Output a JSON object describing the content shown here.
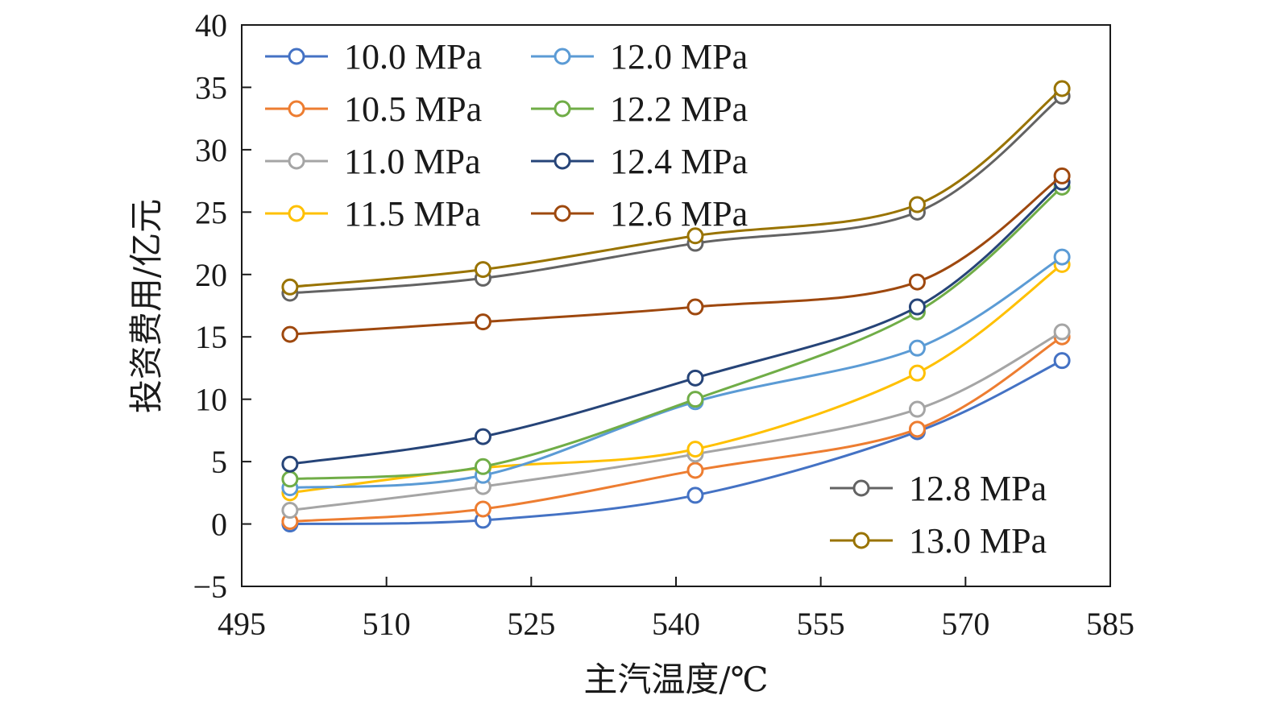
{
  "chart_data": {
    "type": "line",
    "title": "",
    "xlabel": "主汽温度/℃",
    "ylabel": "投资费用/亿元",
    "xlim": [
      495,
      585
    ],
    "ylim": [
      -5,
      40
    ],
    "xticks": [
      495,
      510,
      525,
      540,
      555,
      570,
      585
    ],
    "yticks": [
      -5,
      0,
      5,
      10,
      15,
      20,
      25,
      30,
      35,
      40
    ],
    "xtick_labels": [
      "495",
      "510",
      "525",
      "540",
      "555",
      "570",
      "585"
    ],
    "ytick_labels": [
      "−5",
      "0",
      "5",
      "10",
      "15",
      "20",
      "25",
      "30",
      "35",
      "40"
    ],
    "grid": false,
    "x": [
      500,
      520,
      542,
      565,
      580
    ],
    "series": [
      {
        "name": "10.0 MPa",
        "color": "#4472C4",
        "values": [
          0,
          0.3,
          2.3,
          7.4,
          13.1
        ]
      },
      {
        "name": "10.5 MPa",
        "color": "#ED7D31",
        "values": [
          0.2,
          1.2,
          4.3,
          7.6,
          15.0
        ]
      },
      {
        "name": "11.0 MPa",
        "color": "#A5A5A5",
        "values": [
          1.1,
          3.0,
          5.6,
          9.2,
          15.4
        ]
      },
      {
        "name": "11.5 MPa",
        "color": "#FFC000",
        "values": [
          2.5,
          4.5,
          6.0,
          12.1,
          20.8
        ]
      },
      {
        "name": "12.0 MPa",
        "color": "#5B9BD5",
        "values": [
          2.9,
          3.9,
          9.8,
          14.1,
          21.4
        ]
      },
      {
        "name": "12.2 MPa",
        "color": "#70AD47",
        "values": [
          3.6,
          4.6,
          10.0,
          17.0,
          27.0
        ]
      },
      {
        "name": "12.4 MPa",
        "color": "#264478",
        "values": [
          4.8,
          7.0,
          11.7,
          17.4,
          27.4
        ]
      },
      {
        "name": "12.6 MPa",
        "color": "#9E480E",
        "values": [
          15.2,
          16.2,
          17.4,
          19.4,
          27.9
        ]
      },
      {
        "name": "12.8 MPa",
        "color": "#636363",
        "values": [
          18.5,
          19.7,
          22.5,
          25.0,
          34.3
        ]
      },
      {
        "name": "13.0 MPa",
        "color": "#997300",
        "values": [
          19.0,
          20.4,
          23.1,
          25.6,
          34.9
        ]
      }
    ],
    "legend": [
      {
        "position": "top-left",
        "columns": 2,
        "entries": [
          "10.0 MPa",
          "10.5 MPa",
          "11.0 MPa",
          "11.5 MPa",
          "12.0 MPa",
          "12.2 MPa",
          "12.4 MPa",
          "12.6 MPa"
        ]
      },
      {
        "position": "bottom-right",
        "columns": 1,
        "entries": [
          "12.8 MPa",
          "13.0 MPa"
        ]
      }
    ]
  }
}
